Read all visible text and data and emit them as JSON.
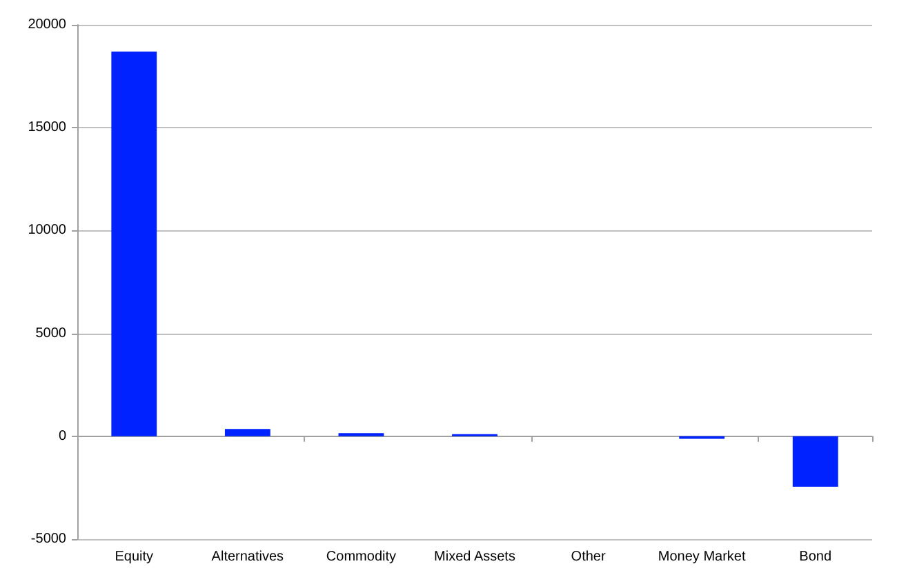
{
  "chart_data": {
    "type": "bar",
    "categories": [
      "Equity",
      "Alternatives",
      "Commodity",
      "Mixed Assets",
      "Other",
      "Money Market",
      "Bond"
    ],
    "values": [
      18700,
      350,
      150,
      100,
      0,
      -120,
      -2450
    ],
    "color": "#0022ff",
    "ylim": [
      -5000,
      20000
    ],
    "yticks": [
      -5000,
      0,
      5000,
      10000,
      15000,
      20000
    ],
    "grid": "y"
  }
}
